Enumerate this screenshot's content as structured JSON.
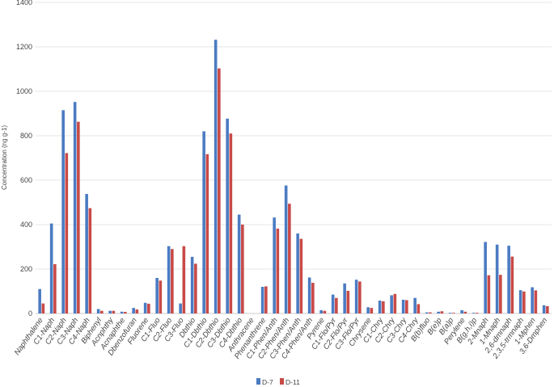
{
  "chart_data": {
    "type": "bar",
    "title": "",
    "xlabel": "",
    "ylabel": "Concentration (ng g-1)",
    "ylim": [
      0,
      1400
    ],
    "yticks": [
      0,
      200,
      400,
      600,
      800,
      1000,
      1200,
      1400
    ],
    "grid": true,
    "legend_position": "bottom-center",
    "colors": {
      "D-7": "#4b7bc2",
      "D-11": "#c84a47"
    },
    "categories": [
      "Naphthalene",
      "C1-Naph",
      "C2-Naph",
      "C3-Naph",
      "C4-Naph",
      "Biphenyl",
      "Acnphthy",
      "Acnaphthe",
      "Dbenzofuran",
      "Fluorene",
      "C1-Fluo",
      "C2-Fluo",
      "C3-Fluo",
      "Dbthio",
      "C1-Dbthio",
      "C2-Dbthio",
      "C3-Dbthio",
      "C4-Dbthio",
      "Anthracene",
      "Phenanthrene",
      "C1-Phen/Anth",
      "C2-Phen/Anth",
      "C3-Phen/Anth",
      "C4-Phen/Anth",
      "Pyrene",
      "C1-Flo/Pyr",
      "C2-Flo/Pyr",
      "C3-Flo/Pyr",
      "Chrysene",
      "C1-Chry",
      "C2-Chry",
      "C3-Chry",
      "C4-Chry",
      "B(b)fluo",
      "B(e)p",
      "B(a)p",
      "Perylene",
      "B(g,h,i)p",
      "2-Mnaph",
      "1-Mnaph",
      "2,6-dmnaph",
      "2,3,5-trmnaph",
      "1-Mphen",
      "3,6-Dmphen"
    ],
    "series": [
      {
        "name": "D-7",
        "values": [
          110,
          405,
          915,
          952,
          538,
          20,
          12,
          8,
          25,
          48,
          160,
          303,
          45,
          255,
          820,
          1232,
          877,
          445,
          0,
          120,
          432,
          576,
          360,
          162,
          15,
          85,
          135,
          152,
          28,
          58,
          82,
          62,
          70,
          5,
          8,
          3,
          15,
          3,
          322,
          310,
          305,
          105,
          118,
          37
        ]
      },
      {
        "name": "D-11",
        "values": [
          45,
          222,
          722,
          863,
          474,
          12,
          12,
          7,
          18,
          44,
          148,
          290,
          303,
          224,
          717,
          1103,
          810,
          400,
          0,
          122,
          382,
          494,
          336,
          138,
          12,
          70,
          102,
          144,
          25,
          55,
          88,
          60,
          42,
          5,
          10,
          3,
          8,
          3,
          172,
          174,
          256,
          99,
          104,
          33
        ]
      }
    ]
  }
}
